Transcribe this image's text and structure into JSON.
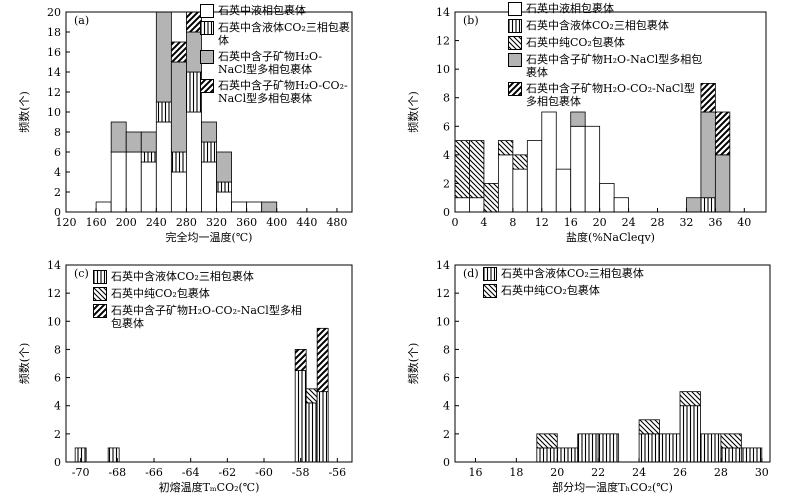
{
  "chart_data": [
    {
      "type": "histogram",
      "label": "(a)",
      "xlabel": "完全均一温度(℃)",
      "ylabel": "频数(个)",
      "bins": [
        160,
        180,
        200,
        220,
        240,
        260,
        280,
        300,
        320,
        340,
        360,
        380,
        400
      ],
      "series": [
        {
          "name": "石英中液相包裹体",
          "fill": "white",
          "values": [
            1,
            6,
            6,
            5,
            9,
            4,
            10,
            5,
            2,
            1,
            1,
            0
          ]
        },
        {
          "name": "石英中含液体CO₂三相包裹体",
          "fill": "vertical",
          "values": [
            0,
            0,
            0,
            1,
            2,
            2,
            4,
            2,
            1,
            0,
            0,
            0
          ]
        },
        {
          "name": "石英中含子矿物H₂O-NaCl型多相包裹体",
          "fill": "gray",
          "values": [
            0,
            3,
            2,
            2,
            9,
            9,
            4,
            2,
            3,
            0,
            0,
            1
          ]
        },
        {
          "name": "石英中含子矿物H₂O-CO₂-NaCl型多相包裹体",
          "fill": "hatch",
          "values": [
            0,
            0,
            0,
            0,
            0,
            2,
            2,
            0,
            0,
            0,
            0,
            0
          ]
        }
      ],
      "xlim": [
        120,
        500
      ],
      "xticks": [
        120,
        160,
        200,
        240,
        280,
        320,
        360,
        400,
        440,
        480
      ],
      "ylim": [
        0,
        20
      ],
      "yticks": [
        0,
        2,
        4,
        6,
        8,
        10,
        12,
        14,
        16,
        18,
        20
      ]
    },
    {
      "type": "histogram",
      "label": "(b)",
      "xlabel": "盐度(%NaCleqv)",
      "ylabel": "频数(个)",
      "bins": [
        0,
        2,
        4,
        6,
        8,
        10,
        12,
        14,
        16,
        18,
        20,
        22,
        24,
        26,
        28,
        30,
        32,
        34,
        36,
        38
      ],
      "series": [
        {
          "name": "石英中液相包裹体",
          "fill": "white",
          "values": [
            1,
            1,
            0,
            4,
            3,
            5,
            7,
            3,
            6,
            6,
            2,
            1,
            0,
            0,
            0,
            0,
            0,
            0,
            0
          ]
        },
        {
          "name": "石英中含液体CO₂三相包裹体",
          "fill": "vertical",
          "values": [
            0,
            0,
            0,
            0,
            0,
            0,
            0,
            0,
            0,
            0,
            0,
            0,
            0,
            0,
            0,
            0,
            0,
            1,
            0
          ]
        },
        {
          "name": "石英中纯CO₂包裹体",
          "fill": "diagonal",
          "values": [
            4,
            4,
            2,
            1,
            1,
            0,
            0,
            0,
            0,
            0,
            0,
            0,
            0,
            0,
            0,
            0,
            0,
            0,
            0
          ]
        },
        {
          "name": "石英中含子矿物H₂O-NaCl型多相包裹体",
          "fill": "gray",
          "values": [
            0,
            0,
            0,
            0,
            0,
            0,
            0,
            0,
            1,
            0,
            0,
            0,
            0,
            0,
            0,
            0,
            1,
            6,
            4
          ]
        },
        {
          "name": "石英中含子矿物H₂O-CO₂-NaCl型多相包裹体",
          "fill": "hatch",
          "values": [
            0,
            0,
            0,
            0,
            0,
            0,
            0,
            0,
            0,
            0,
            0,
            0,
            0,
            0,
            0,
            0,
            0,
            2,
            3
          ]
        }
      ],
      "xlim": [
        0,
        43
      ],
      "xticks": [
        0,
        4,
        8,
        12,
        16,
        20,
        24,
        28,
        32,
        36,
        40
      ],
      "ylim": [
        0,
        14
      ],
      "yticks": [
        0,
        2,
        4,
        6,
        8,
        10,
        12,
        14
      ]
    },
    {
      "type": "histogram",
      "label": "(c)",
      "xlabel": "初熔温度TₘCO₂(℃)",
      "ylabel": "频数(个)",
      "bins": [
        -70.3,
        -69.7,
        -68.5,
        -67.9,
        -58.3,
        -57.7,
        -57.1,
        -56.5
      ],
      "series": [
        {
          "name": "石英中含液体CO₂三相包裹体",
          "fill": "vertical",
          "values": [
            1,
            0,
            1,
            0,
            6.5,
            4.2,
            5
          ]
        },
        {
          "name": "石英中纯CO₂包裹体",
          "fill": "diagonal",
          "values": [
            0,
            0,
            0,
            0,
            0,
            1,
            0
          ]
        },
        {
          "name": "石英中含子矿物H₂O-CO₂-NaCl型多相包裹体",
          "fill": "hatch",
          "values": [
            0,
            0,
            0,
            0,
            1.5,
            0,
            4.5
          ]
        }
      ],
      "xlim": [
        -70.8,
        -55.2
      ],
      "xticks": [
        -70,
        -68,
        -66,
        -64,
        -62,
        -60,
        -58,
        -56
      ],
      "ylim": [
        0,
        14
      ],
      "yticks": [
        0,
        2,
        4,
        6,
        8,
        10,
        12,
        14
      ]
    },
    {
      "type": "histogram",
      "label": "(d)",
      "xlabel": "部分均一温度TₕCO₂(℃)",
      "ylabel": "频数(个)",
      "bins": [
        19,
        20,
        21,
        22,
        23,
        24,
        25,
        26,
        27,
        28,
        29,
        30
      ],
      "series": [
        {
          "name": "石英中含液体CO₂三相包裹体",
          "fill": "vertical",
          "values": [
            1,
            1,
            2,
            2,
            0,
            2,
            2,
            4,
            2,
            1,
            1
          ]
        },
        {
          "name": "石英中纯CO₂包裹体",
          "fill": "diagonal",
          "values": [
            1,
            0,
            0,
            0,
            0,
            1,
            0,
            1,
            0,
            1,
            0
          ]
        }
      ],
      "xlim": [
        15,
        30.4
      ],
      "xticks": [
        16,
        18,
        20,
        22,
        24,
        26,
        28,
        30
      ],
      "ylim": [
        0,
        14
      ],
      "yticks": [
        0,
        2,
        4,
        6,
        8,
        10,
        12,
        14
      ]
    }
  ]
}
